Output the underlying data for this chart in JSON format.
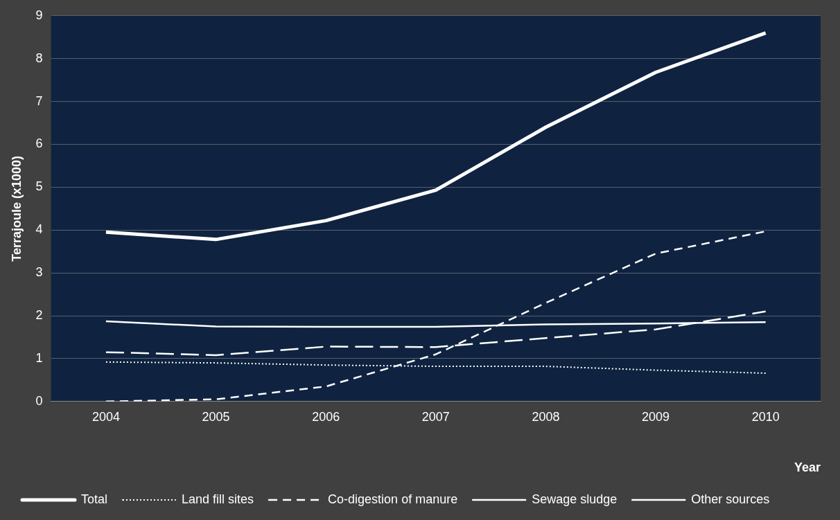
{
  "chart_data": {
    "type": "line",
    "xlabel": "Year",
    "ylabel": "Terrajoule (x1000)",
    "categories": [
      "2004",
      "2005",
      "2006",
      "2007",
      "2008",
      "2009",
      "2010"
    ],
    "series": [
      {
        "name": "Total",
        "color": "#ffffff",
        "line_style": "solid",
        "values": [
          3.95,
          3.78,
          4.22,
          4.93,
          6.4,
          7.68,
          8.6
        ]
      },
      {
        "name": "Land fill sites",
        "color": "#ffffff",
        "line_style": "dotted",
        "values": [
          0.92,
          0.9,
          0.85,
          0.82,
          0.82,
          0.73,
          0.66
        ]
      },
      {
        "name": "Co-digestion of manure",
        "color": "#ffffff",
        "line_style": "dashed",
        "values": [
          0,
          0.05,
          0.35,
          1.1,
          2.3,
          3.45,
          3.97
        ]
      },
      {
        "name": "Sewage sludge",
        "color": "#ffffff",
        "line_style": "solid",
        "values": [
          1.87,
          1.75,
          1.74,
          1.74,
          1.8,
          1.82,
          1.85
        ]
      },
      {
        "name": "Other sources",
        "color": "#ffffff",
        "line_style": "dashed",
        "values": [
          1.15,
          1.08,
          1.28,
          1.27,
          1.48,
          1.68,
          2.1
        ]
      }
    ],
    "ylim": [
      0,
      9
    ],
    "yticks": [
      0,
      1,
      2,
      3,
      4,
      5,
      6,
      7,
      8,
      9
    ],
    "grid": "y",
    "legend": "bottom",
    "marker": "none"
  }
}
